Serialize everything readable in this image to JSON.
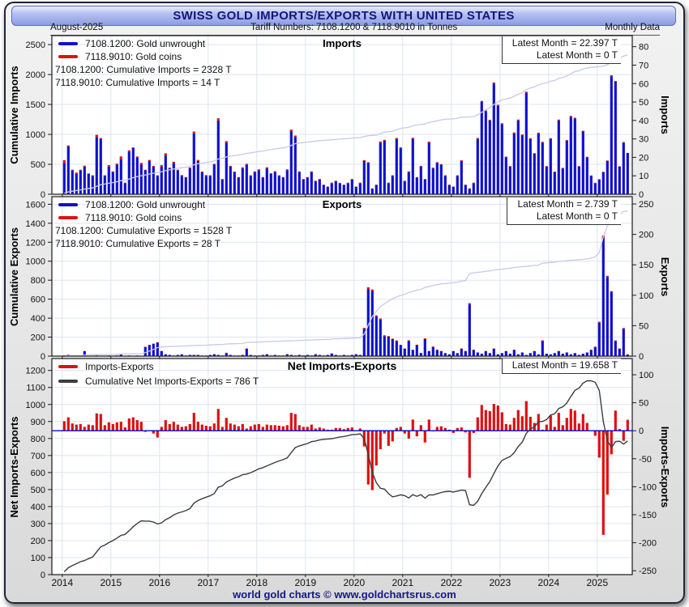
{
  "header": {
    "title": "SWISS GOLD IMPORTS/EXPORTS WITH UNITED STATES",
    "date": "August-2025",
    "tariff": "Tariff Numbers: 7108.1200 & 7118.9010 in Tonnes",
    "monthly": "Monthly Data"
  },
  "footer": {
    "text": "world gold charts © www.goldchartsrus.com"
  },
  "colors": {
    "bar_blue": "#1111cc",
    "bar_red": "#dd1111",
    "cum_line": "#c8c9e9",
    "net_line": "#3d3d3d",
    "zero_line": "#0008c8",
    "grid": "#dce4f2",
    "accent_navy": "#15157e"
  },
  "chart_data": {
    "type": "bar+line",
    "x": {
      "start_year": 2014,
      "start_month": 1,
      "months": 140,
      "year_ticks": [
        2014,
        2015,
        2016,
        2017,
        2018,
        2019,
        2020,
        2021,
        2022,
        2023,
        2024,
        2025
      ]
    },
    "panels": [
      {
        "id": "imports",
        "title": "Imports",
        "legend": [
          {
            "swatch": "bar_blue",
            "label": "7108.1200: Gold unwrought"
          },
          {
            "swatch": "bar_red",
            "label": "7118.9010: Gold coins"
          }
        ],
        "annotations": [
          "7108.1200: Cumulative Imports = 2328 T",
          "7118.9010: Cumulative Imports = 14 T"
        ],
        "latest": [
          "Latest Month = 22.397 T",
          "Latest Month = 0 T"
        ],
        "left_axis": {
          "label": "Cumulative Imports",
          "ticks": [
            0,
            500,
            1000,
            1500,
            2000,
            2500
          ]
        },
        "right_axis": {
          "label": "Imports",
          "ticks": [
            0,
            10,
            20,
            30,
            40,
            50,
            60,
            70,
            80
          ]
        },
        "series": {
          "cumulative_final": 2328,
          "gold_unwrought_monthly": [
            17,
            26,
            13,
            11,
            13,
            15,
            11,
            10,
            31,
            30,
            10,
            15,
            12,
            16,
            19,
            6,
            23,
            25,
            20,
            16,
            13,
            18,
            15,
            10,
            15,
            21,
            14,
            17,
            13,
            10,
            9,
            14,
            33,
            18,
            12,
            10,
            10,
            16,
            40,
            8,
            28,
            15,
            12,
            9,
            14,
            16,
            10,
            12,
            13,
            9,
            14,
            11,
            12,
            10,
            9,
            13,
            34,
            31,
            12,
            8,
            9,
            12,
            7,
            8,
            5,
            4,
            6,
            7,
            6,
            5,
            6,
            8,
            4,
            6,
            18,
            17,
            3,
            5,
            28,
            29,
            6,
            10,
            30,
            25,
            7,
            12,
            30,
            9,
            15,
            8,
            28,
            14,
            17,
            16,
            10,
            5,
            4,
            10,
            18,
            5,
            3,
            6,
            30,
            50,
            45,
            40,
            60,
            48,
            38,
            20,
            15,
            33,
            40,
            32,
            55,
            30,
            22,
            33,
            28,
            15,
            30,
            12,
            40,
            14,
            29,
            42,
            41,
            15,
            34,
            20,
            10,
            6,
            8,
            12,
            18,
            64,
            61,
            15,
            28,
            22.397
          ],
          "gold_coins_monthly": [
            1.5,
            0.5,
            0.3,
            0.8,
            0.3,
            0.5,
            0.3,
            0.3,
            1.2,
            0.5,
            0.3,
            0.8,
            0.4,
            0.6,
            1.5,
            0.3,
            0.8,
            0.4,
            0.5,
            1,
            0.3,
            0.6,
            0.4,
            0.3,
            0.8,
            1.2,
            0.4,
            0.6,
            0.3,
            0.4,
            0.3,
            0.5,
            1,
            0.6,
            0.3,
            0.4,
            0.3,
            0.5,
            1.2,
            0.3,
            0.8,
            0.4,
            0.3,
            0.3,
            0.6,
            0.5,
            0.3,
            0.4,
            0.5,
            0.3,
            0.6,
            0.4,
            0.5,
            0.3,
            0.3,
            0.5,
            1,
            0.8,
            0.4,
            0.3,
            0.3,
            0.4,
            0.3,
            0.3,
            0.2,
            0.2,
            0.3,
            0.3,
            0.2,
            0.2,
            0.3,
            0.3,
            0.2,
            0.3,
            0.5,
            0.4,
            0.2,
            0.2,
            0.6,
            0.5,
            0.3,
            0.3,
            0.5,
            0.4,
            0.3,
            0.4,
            0.6,
            0.3,
            0.4,
            0.3,
            0.5,
            0.4,
            0.4,
            0.3,
            0.3,
            0.2,
            0.2,
            0.3,
            0.4,
            0.2,
            0.2,
            0.3,
            0.5,
            0.6,
            0.5,
            0.4,
            0.6,
            0.5,
            0.5,
            0.4,
            0.3,
            0.5,
            0.5,
            0.4,
            0.6,
            0.4,
            0.3,
            0.4,
            0.4,
            0.3,
            0.4,
            0.3,
            0.5,
            0.3,
            0.4,
            0.5,
            0.5,
            0.3,
            0.4,
            0.3,
            0.2,
            0.2,
            0.2,
            0.2,
            0.3,
            0.5,
            0.4,
            0.2,
            0.3,
            0
          ]
        }
      },
      {
        "id": "exports",
        "title": "Exports",
        "legend": [
          {
            "swatch": "bar_blue",
            "label": "7108.1200: Gold unwrought"
          },
          {
            "swatch": "bar_red",
            "label": "7118.9010: Gold coins"
          }
        ],
        "annotations": [
          "7108.1200: Cumulative Exports = 1528 T",
          "7118.9010: Cumulative Exports = 28 T"
        ],
        "latest": [
          "Latest Month = 2.739 T",
          "Latest Month = 0 T"
        ],
        "left_axis": {
          "label": "Cumulative Exports",
          "ticks": [
            0,
            200,
            400,
            600,
            800,
            1000,
            1200,
            1400,
            1600
          ]
        },
        "right_axis": {
          "label": "Exports",
          "ticks": [
            0,
            50,
            100,
            150,
            200,
            250
          ]
        },
        "series": {
          "cumulative_final": 1528,
          "gold_unwrought_monthly": [
            1,
            2,
            0.5,
            0.5,
            1,
            8,
            0.5,
            0.5,
            1,
            0.5,
            0.5,
            1,
            0.5,
            1,
            3,
            0.5,
            1,
            0.5,
            1,
            0.5,
            15,
            18,
            20,
            22,
            8,
            3,
            2,
            1,
            2,
            3,
            1,
            2,
            2,
            2,
            1,
            1,
            2,
            3,
            2,
            1,
            5,
            2,
            1,
            1,
            2,
            12,
            2,
            1,
            1,
            2,
            3,
            1,
            2,
            1,
            1,
            3,
            2,
            1,
            2,
            1,
            2,
            1,
            3,
            2,
            1,
            2,
            4,
            2,
            1,
            2,
            1,
            2,
            3,
            2,
            45,
            110,
            107,
            65,
            60,
            33,
            32,
            28,
            25,
            18,
            12,
            25,
            10,
            18,
            5,
            28,
            8,
            15,
            10,
            8,
            5,
            3,
            8,
            5,
            12,
            8,
            85,
            10,
            6,
            4,
            8,
            5,
            12,
            3,
            5,
            8,
            4,
            10,
            3,
            6,
            2,
            5,
            8,
            3,
            25,
            4,
            3,
            5,
            8,
            4,
            6,
            3,
            5,
            2,
            4,
            6,
            10,
            15,
            55,
            195,
            130,
            105,
            25,
            12,
            45,
            2.739
          ],
          "gold_coins_monthly": [
            0.3,
            0.2,
            0.2,
            0.3,
            0.2,
            0.5,
            0.2,
            0.2,
            0.3,
            0.2,
            0.2,
            0.3,
            0.2,
            0.3,
            0.4,
            0.2,
            0.3,
            0.2,
            0.2,
            0.2,
            0.5,
            0.5,
            0.6,
            0.8,
            0.5,
            0.3,
            0.3,
            0.2,
            0.3,
            0.3,
            0.2,
            0.3,
            0.3,
            0.3,
            0.2,
            0.2,
            0.3,
            0.4,
            0.3,
            0.2,
            0.5,
            0.3,
            0.2,
            0.2,
            0.3,
            0.6,
            0.3,
            0.2,
            0.2,
            0.3,
            0.4,
            0.2,
            0.3,
            0.2,
            0.2,
            0.4,
            0.3,
            0.2,
            0.3,
            0.2,
            0.3,
            0.2,
            0.4,
            0.3,
            0.2,
            0.3,
            0.5,
            0.3,
            0.2,
            0.3,
            0.2,
            0.3,
            0.4,
            0.3,
            1.5,
            3,
            2.5,
            2,
            1.8,
            1.2,
            1,
            0.8,
            0.8,
            0.6,
            0.6,
            1,
            0.5,
            0.8,
            0.4,
            1.2,
            0.5,
            0.8,
            0.5,
            0.4,
            0.3,
            0.3,
            0.4,
            0.3,
            0.6,
            0.4,
            2,
            0.5,
            0.3,
            0.3,
            0.4,
            0.3,
            0.6,
            0.2,
            0.3,
            0.4,
            0.3,
            0.5,
            0.2,
            0.3,
            0.2,
            0.3,
            0.4,
            0.2,
            1,
            0.3,
            0.2,
            0.3,
            0.4,
            0.2,
            0.3,
            0.2,
            0.3,
            0.2,
            0.3,
            0.3,
            0.5,
            0.6,
            1.5,
            3,
            2,
            1.8,
            0.8,
            0.5,
            1.2,
            0
          ]
        }
      },
      {
        "id": "net",
        "title": "Net Imports-Exports",
        "legend": [
          {
            "swatch": "bar_red",
            "label": "Imports-Exports"
          },
          {
            "swatch": "net_line",
            "label": "Cumulative Net Imports-Exports = 786 T"
          }
        ],
        "annotations": [],
        "latest": [
          "Latest Month = 19.658 T"
        ],
        "left_axis": {
          "label": "Net Imports-Exports",
          "ticks": [
            0,
            100,
            200,
            300,
            400,
            500,
            600,
            700,
            800,
            900,
            1000,
            1100,
            1200
          ]
        },
        "right_axis": {
          "label": "Imports-Exports",
          "ticks": [
            100,
            50,
            0,
            -50,
            -100,
            -150,
            -200,
            -250
          ]
        },
        "series": {
          "cumulative_final": 786,
          "net_monthly": [
            17,
            24,
            13,
            11,
            12,
            7,
            11,
            10,
            31,
            30,
            10,
            15,
            12,
            15,
            16,
            6,
            22,
            24,
            19,
            16,
            -2,
            0,
            -5,
            -12,
            7,
            19,
            12,
            16,
            11,
            7,
            8,
            12,
            32,
            16,
            11,
            9,
            8,
            13,
            39,
            7,
            23,
            13,
            11,
            8,
            12,
            4,
            8,
            11,
            12,
            7,
            11,
            10,
            10,
            9,
            8,
            10,
            32,
            30,
            10,
            7,
            7,
            11,
            4,
            6,
            4,
            2,
            2,
            5,
            5,
            3,
            5,
            6,
            1,
            4,
            -28,
            -96,
            -106,
            -62,
            -33,
            -5,
            -27,
            -19,
            5,
            7,
            -5,
            -14,
            20,
            -10,
            10,
            -21,
            20,
            -1,
            7,
            8,
            5,
            2,
            -4,
            5,
            6,
            -3,
            -84,
            -4,
            24,
            46,
            37,
            35,
            48,
            45,
            33,
            12,
            11,
            23,
            37,
            26,
            53,
            25,
            14,
            30,
            2,
            11,
            27,
            7,
            32,
            10,
            23,
            39,
            36,
            13,
            30,
            14,
            0,
            -9,
            -48,
            -186,
            -114,
            -42,
            36,
            3,
            -18,
            19.658
          ]
        }
      }
    ]
  }
}
